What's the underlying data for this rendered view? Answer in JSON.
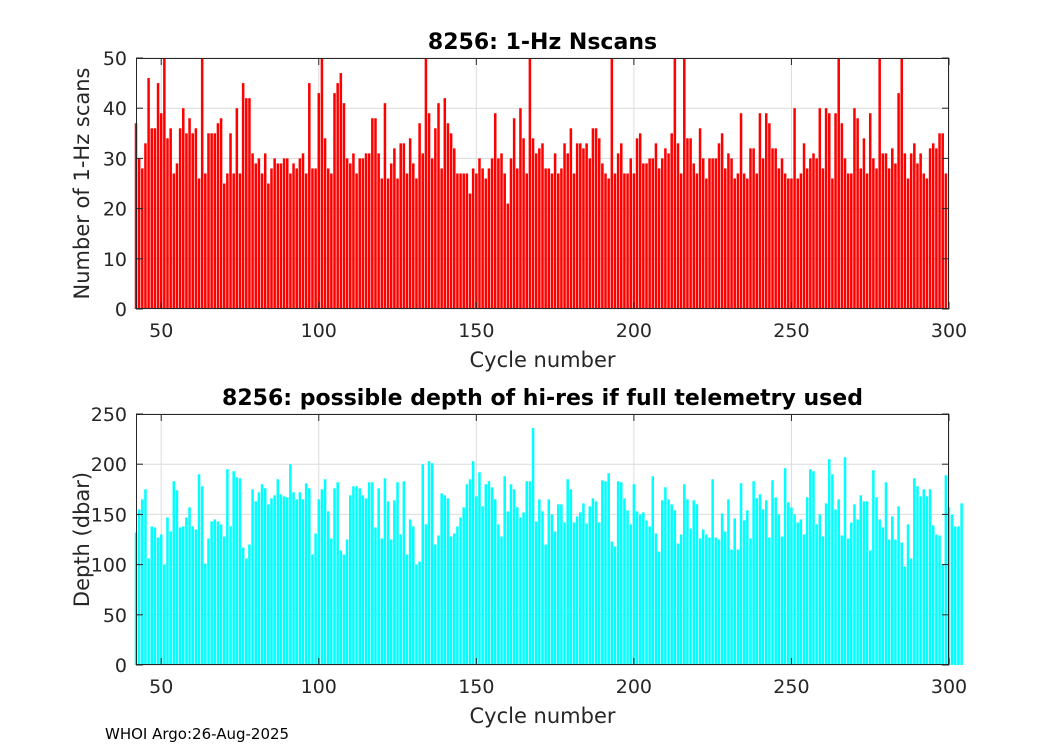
{
  "chart_data": [
    {
      "type": "bar",
      "title": "8256: 1-Hz Nscans",
      "xlabel": "Cycle number",
      "ylabel": "Number of 1-Hz scans",
      "xlim": [
        42,
        300
      ],
      "ylim": [
        0,
        50
      ],
      "xticks": [
        50,
        100,
        150,
        200,
        250,
        300
      ],
      "yticks": [
        0,
        10,
        20,
        30,
        40,
        50
      ],
      "grid": true,
      "bar_color": "#ff0000",
      "x_start": 42,
      "values": [
        37,
        30,
        28,
        33,
        46,
        36,
        36,
        45,
        39,
        50,
        34,
        36,
        27,
        29,
        36,
        40,
        35,
        38,
        35,
        36,
        26,
        50,
        27,
        35,
        35,
        35,
        37,
        38,
        25,
        27,
        35,
        27,
        40,
        27,
        45,
        42,
        42,
        31,
        29,
        30,
        27,
        31,
        25,
        28,
        30,
        29,
        29,
        30,
        30,
        27,
        29,
        28,
        30,
        31,
        27,
        45,
        28,
        28,
        43,
        50,
        34,
        28,
        27,
        43,
        45,
        47,
        41,
        30,
        29,
        31,
        27,
        30,
        30,
        31,
        31,
        38,
        38,
        31,
        26,
        41,
        26,
        29,
        32,
        26,
        33,
        33,
        27,
        34,
        29,
        26,
        37,
        31,
        50,
        39,
        30,
        36,
        41,
        28,
        42,
        37,
        35,
        32,
        27,
        27,
        27,
        27,
        23,
        28,
        27,
        30,
        28,
        26,
        28,
        30,
        39,
        30,
        31,
        27,
        21,
        30,
        38,
        28,
        40,
        34,
        27,
        50,
        34,
        31,
        32,
        33,
        28,
        28,
        27,
        31,
        27,
        28,
        33,
        31,
        36,
        27,
        33,
        33,
        32,
        33,
        30,
        36,
        36,
        34,
        29,
        27,
        26,
        50,
        27,
        31,
        33,
        27,
        27,
        30,
        27,
        34,
        35,
        29,
        29,
        30,
        30,
        33,
        28,
        30,
        32,
        31,
        35,
        50,
        33,
        27,
        50,
        34,
        34,
        29,
        27,
        36,
        30,
        26,
        30,
        30,
        30,
        33,
        35,
        28,
        31,
        30,
        26,
        27,
        39,
        27,
        26,
        32,
        32,
        27,
        39,
        30,
        39,
        37,
        32,
        32,
        28,
        30,
        27,
        26,
        26,
        40,
        26,
        27,
        33,
        28,
        30,
        31,
        30,
        40,
        28,
        40,
        39,
        26,
        39,
        50,
        37,
        30,
        27,
        27,
        40,
        38,
        28,
        34,
        27,
        39,
        30,
        28,
        50,
        31,
        31,
        28,
        32,
        29,
        43,
        50,
        31,
        26,
        31,
        33,
        29,
        31,
        27,
        26,
        32,
        33,
        32,
        35,
        35,
        27
      ]
    },
    {
      "type": "bar",
      "title": "8256: possible depth of hi-res if full telemetry used",
      "xlabel": "Cycle number",
      "ylabel": "Depth (dbar)",
      "xlim": [
        42,
        300
      ],
      "ylim": [
        0,
        250
      ],
      "xticks": [
        50,
        100,
        150,
        200,
        250,
        300
      ],
      "yticks": [
        0,
        50,
        100,
        150,
        200,
        250
      ],
      "grid": true,
      "bar_color": "#00ffff",
      "x_start": 42,
      "values": [
        132,
        155,
        165,
        175,
        106,
        138,
        137,
        127,
        130,
        100,
        147,
        133,
        183,
        174,
        137,
        138,
        147,
        157,
        138,
        135,
        190,
        178,
        101,
        126,
        143,
        145,
        143,
        140,
        128,
        195,
        138,
        193,
        187,
        186,
        117,
        106,
        120,
        175,
        163,
        172,
        180,
        176,
        160,
        166,
        169,
        185,
        170,
        168,
        167,
        200,
        172,
        165,
        172,
        165,
        181,
        176,
        110,
        131,
        165,
        175,
        185,
        153,
        126,
        176,
        182,
        114,
        110,
        125,
        169,
        178,
        178,
        176,
        169,
        166,
        182,
        182,
        137,
        176,
        126,
        186,
        163,
        125,
        164,
        182,
        130,
        183,
        110,
        145,
        138,
        100,
        103,
        200,
        140,
        203,
        201,
        120,
        129,
        171,
        169,
        166,
        128,
        131,
        138,
        147,
        157,
        180,
        185,
        203,
        168,
        192,
        158,
        180,
        183,
        177,
        165,
        140,
        128,
        188,
        153,
        180,
        175,
        157,
        147,
        152,
        183,
        183,
        236,
        143,
        165,
        153,
        120,
        165,
        150,
        133,
        160,
        160,
        142,
        185,
        175,
        142,
        148,
        152,
        161,
        141,
        158,
        166,
        163,
        142,
        184,
        183,
        191,
        123,
        118,
        183,
        182,
        166,
        154,
        140,
        180,
        153,
        150,
        152,
        144,
        138,
        188,
        131,
        113,
        164,
        177,
        165,
        160,
        154,
        121,
        130,
        180,
        165,
        136,
        164,
        160,
        126,
        135,
        130,
        127,
        185,
        127,
        125,
        151,
        133,
        165,
        115,
        146,
        115,
        181,
        144,
        154,
        126,
        183,
        166,
        170,
        155,
        164,
        127,
        184,
        167,
        150,
        128,
        196,
        162,
        157,
        150,
        142,
        145,
        130,
        167,
        195,
        193,
        140,
        150,
        128,
        161,
        205,
        190,
        155,
        165,
        129,
        207,
        126,
        142,
        160,
        145,
        169,
        163,
        163,
        114,
        194,
        167,
        145,
        137,
        182,
        125,
        148,
        125,
        158,
        122,
        98,
        140,
        106,
        186,
        178,
        168,
        175,
        168,
        175,
        139,
        130,
        129,
        100,
        189,
        157,
        150,
        138,
        138,
        161
      ]
    }
  ],
  "footer": {
    "text": "WHOI Argo:26-Aug-2025"
  }
}
